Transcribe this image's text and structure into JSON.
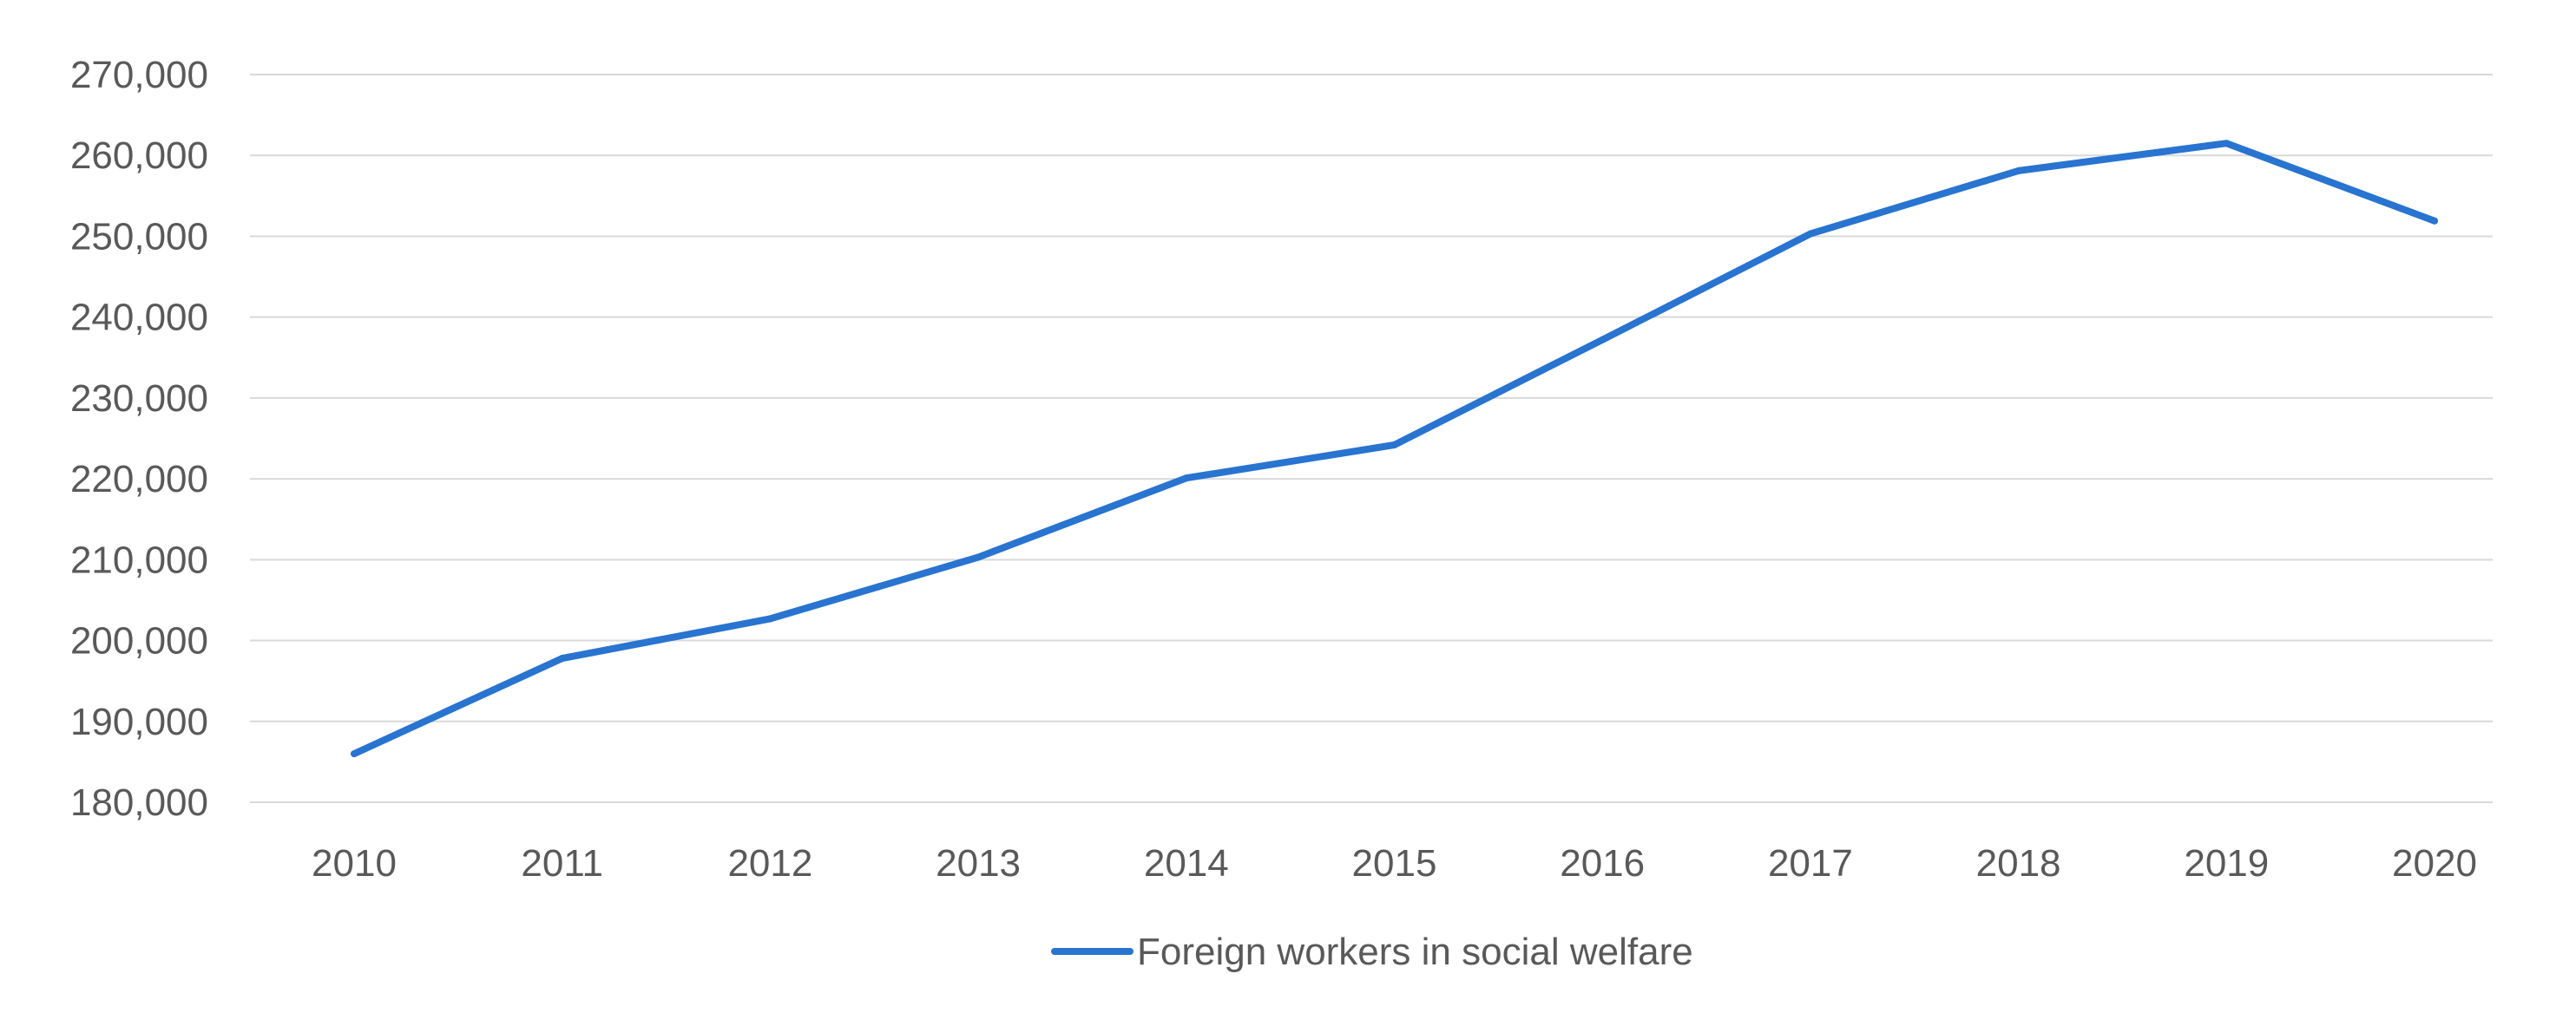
{
  "chart_data": {
    "type": "line",
    "title": "",
    "xlabel": "",
    "ylabel": "",
    "categories": [
      "2010",
      "2011",
      "2012",
      "2013",
      "2014",
      "2015",
      "2016",
      "2017",
      "2018",
      "2019",
      "2020"
    ],
    "series": [
      {
        "name": "Foreign workers in social welfare",
        "values": [
          186000,
          197800,
          202700,
          210300,
          220100,
          224200,
          237200,
          250300,
          258100,
          261500,
          251900
        ],
        "color": "#2874d0"
      }
    ],
    "ylim": [
      180000,
      270000
    ],
    "ytick_step": 10000,
    "y_tick_labels": [
      "180,000",
      "190,000",
      "200,000",
      "210,000",
      "220,000",
      "230,000",
      "240,000",
      "250,000",
      "260,000",
      "270,000"
    ],
    "grid": true,
    "legend_position": "bottom"
  }
}
